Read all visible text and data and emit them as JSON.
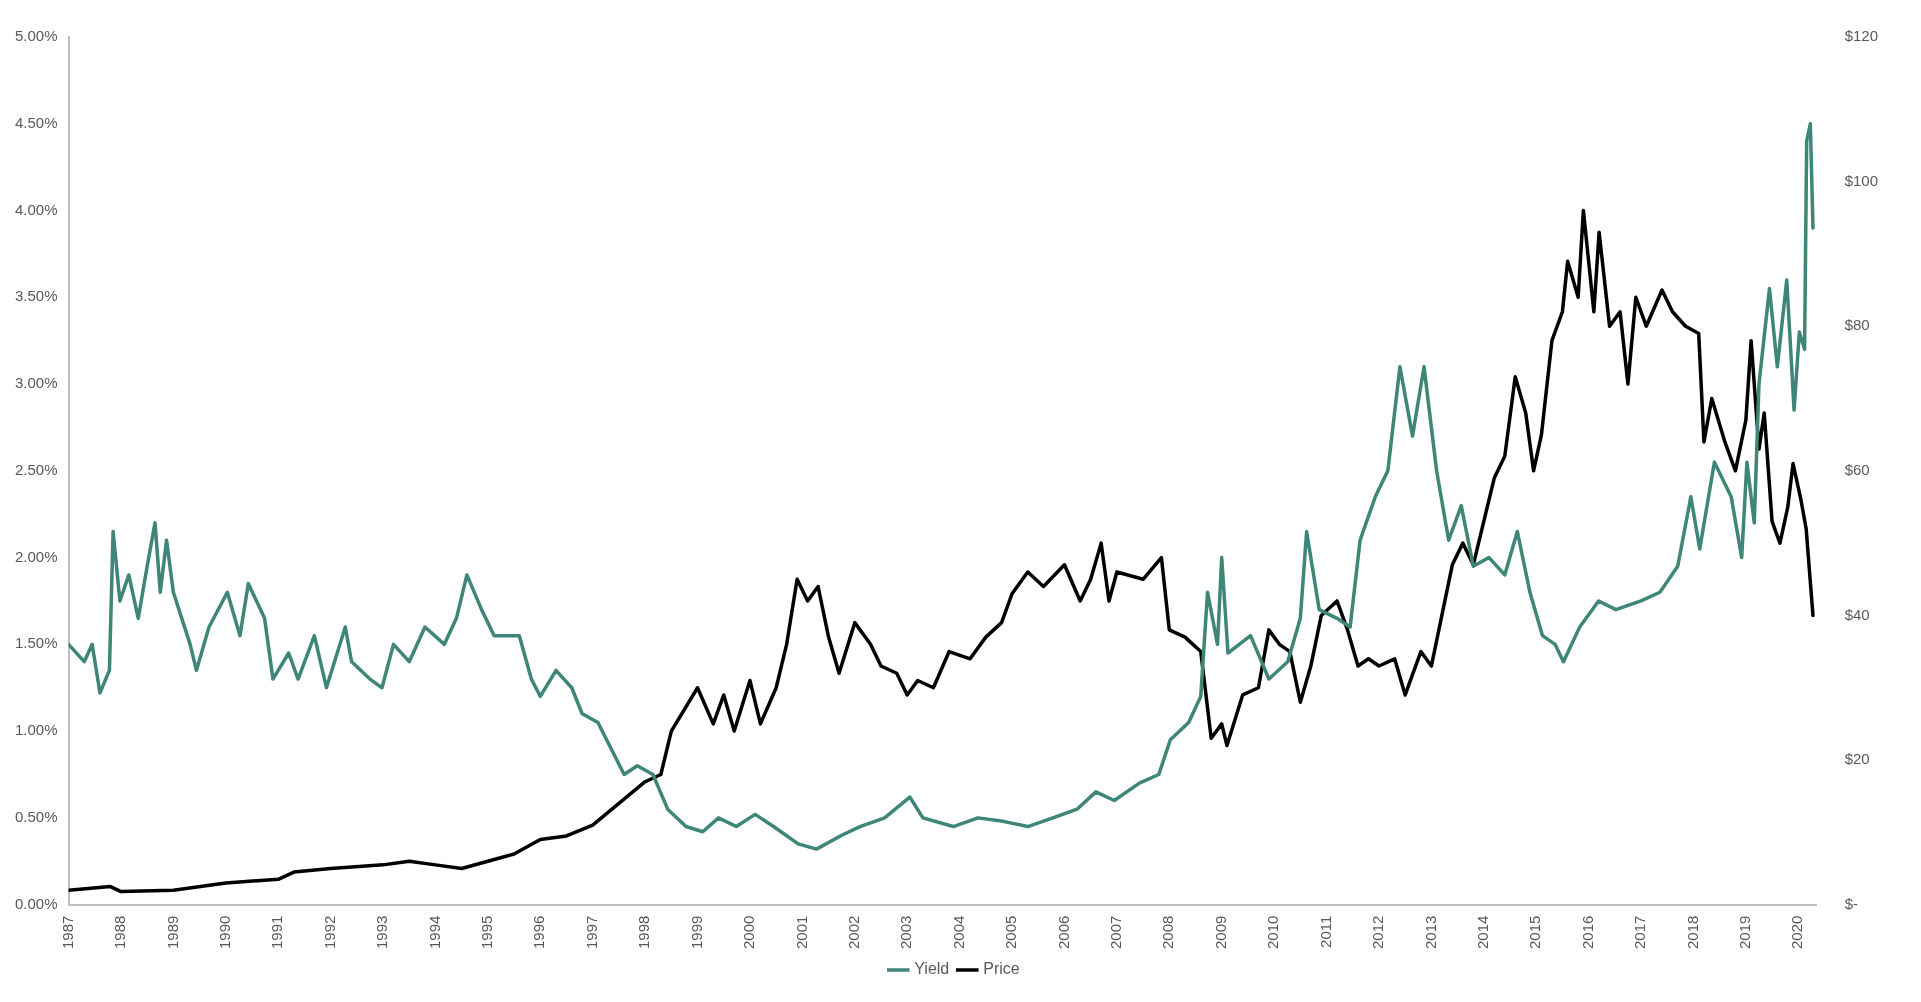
{
  "chart_data": {
    "type": "line",
    "xlim": [
      1987,
      2020.35
    ],
    "xticks": [
      1987,
      1988,
      1989,
      1990,
      1991,
      1992,
      1993,
      1994,
      1995,
      1996,
      1997,
      1998,
      1999,
      2000,
      2001,
      2002,
      2003,
      2004,
      2005,
      2006,
      2007,
      2008,
      2009,
      2010,
      2011,
      2012,
      2013,
      2014,
      2015,
      2016,
      2017,
      2018,
      2019,
      2020
    ],
    "ylim": [
      0,
      5
    ],
    "yticks": [
      {
        "value": 0,
        "label": "0.00%"
      },
      {
        "value": 0.5,
        "label": "0.50%"
      },
      {
        "value": 1,
        "label": "1.00%"
      },
      {
        "value": 1.5,
        "label": "1.50%"
      },
      {
        "value": 2,
        "label": "2.00%"
      },
      {
        "value": 2.5,
        "label": "2.50%"
      },
      {
        "value": 3,
        "label": "3.00%"
      },
      {
        "value": 3.5,
        "label": "3.50%"
      },
      {
        "value": 4,
        "label": "4.00%"
      },
      {
        "value": 4.5,
        "label": "4.50%"
      },
      {
        "value": 5,
        "label": "5.00%"
      }
    ],
    "y2lim": [
      0,
      120
    ],
    "y2ticks": [
      {
        "value": 0,
        "label": "$-"
      },
      {
        "value": 20,
        "label": "$20"
      },
      {
        "value": 40,
        "label": "$40"
      },
      {
        "value": 60,
        "label": "$60"
      },
      {
        "value": 80,
        "label": "$80"
      },
      {
        "value": 100,
        "label": "$100"
      },
      {
        "value": 120,
        "label": "$120"
      }
    ],
    "grid": false,
    "legend": "bottom",
    "line_style": "solid",
    "marker": "none",
    "series": [
      {
        "name": "Yield",
        "color": "#3e8677",
        "x": [
          1987,
          1987.3,
          1987.45,
          1987.6,
          1987.78,
          1987.85,
          1987.98,
          1988.15,
          1988.33,
          1988.5,
          1988.65,
          1988.75,
          1988.87,
          1989,
          1989.32,
          1989.44,
          1989.68,
          1990.03,
          1990.27,
          1990.43,
          1990.74,
          1990.9,
          1991.2,
          1991.38,
          1991.69,
          1991.92,
          1992.28,
          1992.4,
          1992.75,
          1992.98,
          1993.2,
          1993.5,
          1993.8,
          1994.17,
          1994.4,
          1994.6,
          1994.88,
          1995.12,
          1995.6,
          1995.83,
          1996,
          1996.3,
          1996.6,
          1996.8,
          1997.1,
          1997.35,
          1997.6,
          1997.85,
          1998.15,
          1998.43,
          1998.78,
          1999.1,
          1999.4,
          1999.74,
          2000.1,
          2000.45,
          2000.92,
          2001.27,
          2001.75,
          2002.1,
          2002.57,
          2003.05,
          2003.3,
          2003.88,
          2004.35,
          2004.83,
          2005.3,
          2005.78,
          2006.24,
          2006.6,
          2006.95,
          2007.43,
          2007.8,
          2008.02,
          2008.37,
          2008.6,
          2008.73,
          2008.92,
          2009,
          2009.12,
          2009.55,
          2009.9,
          2010.26,
          2010.5,
          2010.62,
          2010.86,
          2011.2,
          2011.45,
          2011.64,
          2011.93,
          2012.17,
          2012.4,
          2012.64,
          2012.86,
          2013.1,
          2013.33,
          2013.57,
          2013.8,
          2014.1,
          2014.4,
          2014.64,
          2014.88,
          2015.12,
          2015.36,
          2015.52,
          2015.83,
          2016.19,
          2016.52,
          2017,
          2017.36,
          2017.7,
          2017.95,
          2018.12,
          2018.4,
          2018.72,
          2018.92,
          2019.02,
          2019.16,
          2019.25,
          2019.45,
          2019.6,
          2019.78,
          2019.92,
          2020.02,
          2020.12,
          2020.16,
          2020.23,
          2020.28
        ],
        "values": [
          1.5,
          1.4,
          1.5,
          1.22,
          1.35,
          2.15,
          1.75,
          1.9,
          1.65,
          1.95,
          2.2,
          1.8,
          2.1,
          1.8,
          1.5,
          1.35,
          1.6,
          1.8,
          1.55,
          1.85,
          1.65,
          1.3,
          1.45,
          1.3,
          1.55,
          1.25,
          1.6,
          1.4,
          1.3,
          1.25,
          1.5,
          1.4,
          1.6,
          1.5,
          1.65,
          1.9,
          1.7,
          1.55,
          1.55,
          1.3,
          1.2,
          1.35,
          1.25,
          1.1,
          1.05,
          0.9,
          0.75,
          0.8,
          0.75,
          0.55,
          0.45,
          0.42,
          0.5,
          0.45,
          0.52,
          0.45,
          0.35,
          0.32,
          0.4,
          0.45,
          0.5,
          0.62,
          0.5,
          0.45,
          0.5,
          0.48,
          0.45,
          0.5,
          0.55,
          0.65,
          0.6,
          0.7,
          0.75,
          0.95,
          1.05,
          1.2,
          1.8,
          1.5,
          2,
          1.45,
          1.55,
          1.3,
          1.4,
          1.65,
          2.15,
          1.7,
          1.65,
          1.6,
          2.1,
          2.35,
          2.5,
          3.1,
          2.7,
          3.1,
          2.5,
          2.1,
          2.3,
          1.95,
          2,
          1.9,
          2.15,
          1.8,
          1.55,
          1.5,
          1.4,
          1.6,
          1.75,
          1.7,
          1.75,
          1.8,
          1.95,
          2.35,
          2.05,
          2.55,
          2.35,
          2,
          2.55,
          2.2,
          3,
          3.55,
          3.1,
          3.6,
          2.85,
          3.3,
          3.2,
          4.4,
          4.5,
          3.9
        ]
      },
      {
        "name": "Price",
        "color": "#000000",
        "axis": "y2",
        "x": [
          1987,
          1987.8,
          1988,
          1989,
          1990,
          1991,
          1991.3,
          1992,
          1993,
          1993.5,
          1994,
          1994.5,
          1995,
          1995.5,
          1996,
          1996.5,
          1997,
          1997.5,
          1998,
          1998.3,
          1998.5,
          1999,
          1999.3,
          1999.5,
          1999.7,
          2000,
          2000.2,
          2000.5,
          2000.7,
          2000.9,
          2001.1,
          2001.3,
          2001.5,
          2001.7,
          2002,
          2002.3,
          2002.5,
          2002.8,
          2003,
          2003.2,
          2003.5,
          2003.8,
          2004.2,
          2004.5,
          2004.8,
          2005,
          2005.3,
          2005.6,
          2006,
          2006.3,
          2006.5,
          2006.7,
          2006.85,
          2007,
          2007.5,
          2007.85,
          2008,
          2008.3,
          2008.6,
          2008.8,
          2009,
          2009.1,
          2009.4,
          2009.7,
          2009.9,
          2010.1,
          2010.3,
          2010.5,
          2010.7,
          2010.9,
          2011.2,
          2011.4,
          2011.6,
          2011.8,
          2012,
          2012.3,
          2012.5,
          2012.8,
          2013,
          2013.2,
          2013.4,
          2013.6,
          2013.8,
          2014,
          2014.2,
          2014.4,
          2014.6,
          2014.8,
          2014.95,
          2015.1,
          2015.3,
          2015.5,
          2015.6,
          2015.8,
          2015.9,
          2016.1,
          2016.2,
          2016.4,
          2016.6,
          2016.75,
          2016.9,
          2017.1,
          2017.4,
          2017.6,
          2017.85,
          2018.1,
          2018.2,
          2018.35,
          2018.6,
          2018.8,
          2019,
          2019.1,
          2019.25,
          2019.35,
          2019.5,
          2019.65,
          2019.8,
          2019.9,
          2020.05,
          2020.15,
          2020.28
        ],
        "values": [
          2,
          2.5,
          1.8,
          2,
          3,
          3.5,
          4.5,
          5,
          5.5,
          6,
          5.5,
          5,
          6,
          7,
          9,
          9.5,
          11,
          14,
          17,
          18,
          24,
          30,
          25,
          29,
          24,
          31,
          25,
          30,
          36,
          45,
          42,
          44,
          37,
          32,
          39,
          36,
          33,
          32,
          29,
          31,
          30,
          35,
          34,
          37,
          39,
          43,
          46,
          44,
          47,
          42,
          45,
          50,
          42,
          46,
          45,
          48,
          38,
          37,
          35,
          23,
          25,
          22,
          29,
          30,
          38,
          36,
          35,
          28,
          33,
          40,
          42,
          38,
          33,
          34,
          33,
          34,
          29,
          35,
          33,
          40,
          47,
          50,
          47,
          53,
          59,
          62,
          73,
          68,
          60,
          65,
          78,
          82,
          89,
          84,
          96,
          82,
          93,
          80,
          82,
          72,
          84,
          80,
          85,
          82,
          80,
          79,
          64,
          70,
          64,
          60,
          67,
          78,
          63,
          68,
          53,
          50,
          55,
          61,
          56,
          52,
          40
        ]
      }
    ]
  }
}
